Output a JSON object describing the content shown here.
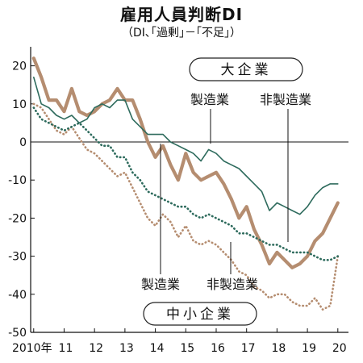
{
  "chart_data": {
    "type": "line",
    "title": "雇用人員判断DI",
    "subtitle": "（DI､｢過剰｣－｢不足｣）",
    "x_ticks": [
      "2010年",
      "11",
      "12",
      "13",
      "14",
      "15",
      "16",
      "17",
      "18",
      "19",
      "20"
    ],
    "ylim": [
      -50,
      25
    ],
    "y_ticks": [
      20,
      10,
      0,
      -10,
      -20,
      -30,
      -40,
      -50
    ],
    "grid": false,
    "group_labels": {
      "large": "大企業",
      "small": "中小企業"
    },
    "series": [
      {
        "name": "製造業",
        "group": "大企業",
        "color": "#b58d70",
        "style": "solid-thick",
        "x": [
          2010.0,
          2010.25,
          2010.5,
          2010.75,
          2011.0,
          2011.25,
          2011.5,
          2011.75,
          2012.0,
          2012.25,
          2012.5,
          2012.75,
          2013.0,
          2013.25,
          2013.5,
          2013.75,
          2014.0,
          2014.25,
          2014.5,
          2014.75,
          2015.0,
          2015.25,
          2015.5,
          2015.75,
          2016.0,
          2016.25,
          2016.5,
          2016.75,
          2017.0,
          2017.25,
          2017.5,
          2017.75,
          2018.0,
          2018.25,
          2018.5,
          2018.75,
          2019.0,
          2019.25,
          2019.5,
          2019.75,
          2020.0
        ],
        "values": [
          22,
          17,
          11,
          11,
          8,
          14,
          8,
          7,
          8,
          10,
          11,
          14,
          11,
          11,
          6,
          0,
          -4,
          -1,
          -6,
          -10,
          -3,
          -8,
          -10,
          -9,
          -8,
          -11,
          -15,
          -20,
          -17,
          -23,
          -27,
          -32,
          -29,
          -31,
          -33,
          -32,
          -30,
          -26,
          -24,
          -20,
          -16
        ]
      },
      {
        "name": "非製造業",
        "group": "大企業",
        "color": "#2e6b5d",
        "style": "solid-thin",
        "x": [
          2010.0,
          2010.25,
          2010.5,
          2010.75,
          2011.0,
          2011.25,
          2011.5,
          2011.75,
          2012.0,
          2012.25,
          2012.5,
          2012.75,
          2013.0,
          2013.25,
          2013.5,
          2013.75,
          2014.0,
          2014.25,
          2014.5,
          2014.75,
          2015.0,
          2015.25,
          2015.5,
          2015.75,
          2016.0,
          2016.25,
          2016.5,
          2016.75,
          2017.0,
          2017.25,
          2017.5,
          2017.75,
          2018.0,
          2018.25,
          2018.5,
          2018.75,
          2019.0,
          2019.25,
          2019.5,
          2019.75,
          2020.0
        ],
        "values": [
          17,
          10,
          9,
          7,
          6,
          7,
          5,
          6,
          9,
          10,
          9,
          11,
          11,
          6,
          4,
          2,
          2,
          2,
          0,
          -1,
          -2,
          -3,
          -5,
          -2,
          -3,
          -5,
          -6,
          -7,
          -9,
          -11,
          -13,
          -18,
          -16,
          -17,
          -18,
          -19,
          -17,
          -14,
          -12,
          -11,
          -11
        ]
      },
      {
        "name": "製造業",
        "group": "中小企業",
        "color": "#b58d70",
        "style": "dotted",
        "x": [
          2010.0,
          2010.25,
          2010.5,
          2010.75,
          2011.0,
          2011.25,
          2011.5,
          2011.75,
          2012.0,
          2012.25,
          2012.5,
          2012.75,
          2013.0,
          2013.25,
          2013.5,
          2013.75,
          2014.0,
          2014.25,
          2014.5,
          2014.75,
          2015.0,
          2015.25,
          2015.5,
          2015.75,
          2016.0,
          2016.25,
          2016.5,
          2016.75,
          2017.0,
          2017.25,
          2017.5,
          2017.75,
          2018.0,
          2018.25,
          2018.5,
          2018.75,
          2019.0,
          2019.25,
          2019.5,
          2019.75,
          2020.0
        ],
        "values": [
          10,
          9,
          6,
          3,
          2,
          4,
          1,
          -2,
          -3,
          -5,
          -7,
          -9,
          -8,
          -12,
          -16,
          -20,
          -22,
          -19,
          -21,
          -25,
          -22,
          -26,
          -27,
          -26,
          -27,
          -29,
          -31,
          -34,
          -35,
          -38,
          -39,
          -41,
          -40,
          -40,
          -42,
          -43,
          -43,
          -41,
          -44,
          -43,
          -30
        ]
      },
      {
        "name": "非製造業",
        "group": "中小企業",
        "color": "#2e6b5d",
        "style": "dotted",
        "x": [
          2010.0,
          2010.25,
          2010.5,
          2010.75,
          2011.0,
          2011.25,
          2011.5,
          2011.75,
          2012.0,
          2012.25,
          2012.5,
          2012.75,
          2013.0,
          2013.25,
          2013.5,
          2013.75,
          2014.0,
          2014.25,
          2014.5,
          2014.75,
          2015.0,
          2015.25,
          2015.5,
          2015.75,
          2016.0,
          2016.25,
          2016.5,
          2016.75,
          2017.0,
          2017.25,
          2017.5,
          2017.75,
          2018.0,
          2018.25,
          2018.5,
          2018.75,
          2019.0,
          2019.25,
          2019.5,
          2019.75,
          2020.0
        ],
        "values": [
          9,
          6,
          5,
          4,
          3,
          4,
          5,
          3,
          1,
          -1,
          -1,
          -4,
          -4,
          -8,
          -10,
          -13,
          -14,
          -15,
          -16,
          -17,
          -17,
          -19,
          -20,
          -19,
          -20,
          -21,
          -22,
          -24,
          -24,
          -25,
          -26,
          -27,
          -27,
          -28,
          -29,
          -29,
          -29,
          -30,
          -31,
          -31,
          -30
        ]
      }
    ]
  }
}
